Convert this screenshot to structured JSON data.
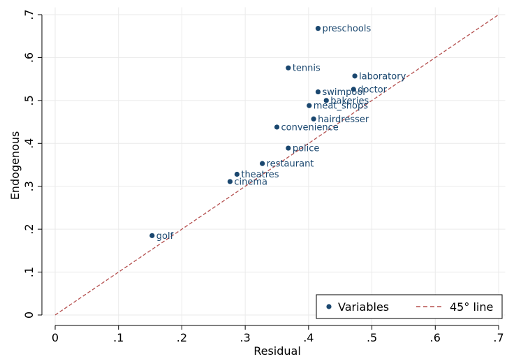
{
  "chart_data": {
    "type": "scatter",
    "xlabel": "Residual",
    "ylabel": "Endogenous",
    "xlim": [
      0,
      0.7
    ],
    "ylim": [
      0,
      0.7
    ],
    "xticks": [
      0,
      0.1,
      0.2,
      0.3,
      0.4,
      0.5,
      0.6,
      0.7
    ],
    "yticks": [
      0,
      0.1,
      0.2,
      0.3,
      0.4,
      0.5,
      0.6,
      0.7
    ],
    "xtick_labels": [
      "0",
      ".1",
      ".2",
      ".3",
      ".4",
      ".5",
      ".6",
      ".7"
    ],
    "ytick_labels": [
      "0",
      ".1",
      ".2",
      ".3",
      ".4",
      ".5",
      ".6",
      ".7"
    ],
    "grid": true,
    "legend_position": "bottom-right",
    "colors": {
      "points": "#1a476f",
      "reference_line": "#b5504f",
      "grid": "#eaeaea"
    },
    "series": [
      {
        "name": "Variables",
        "points": [
          {
            "label": "preschools",
            "x": 0.415,
            "y": 0.668
          },
          {
            "label": "tennis",
            "x": 0.368,
            "y": 0.576
          },
          {
            "label": "laboratory",
            "x": 0.473,
            "y": 0.557
          },
          {
            "label": "doctor",
            "x": 0.471,
            "y": 0.526
          },
          {
            "label": "swimpool",
            "x": 0.415,
            "y": 0.52
          },
          {
            "label": "bakeries",
            "x": 0.428,
            "y": 0.5
          },
          {
            "label": "meat_shops",
            "x": 0.401,
            "y": 0.488
          },
          {
            "label": "hairdresser",
            "x": 0.408,
            "y": 0.457
          },
          {
            "label": "convenience",
            "x": 0.35,
            "y": 0.438
          },
          {
            "label": "police",
            "x": 0.368,
            "y": 0.389
          },
          {
            "label": "restaurant",
            "x": 0.327,
            "y": 0.353
          },
          {
            "label": "theatres",
            "x": 0.287,
            "y": 0.328
          },
          {
            "label": "cinema",
            "x": 0.276,
            "y": 0.311
          },
          {
            "label": "golf",
            "x": 0.153,
            "y": 0.185
          }
        ]
      }
    ],
    "reference_line": {
      "name": "45° line",
      "from": [
        0,
        0
      ],
      "to": [
        0.7,
        0.7
      ]
    }
  }
}
